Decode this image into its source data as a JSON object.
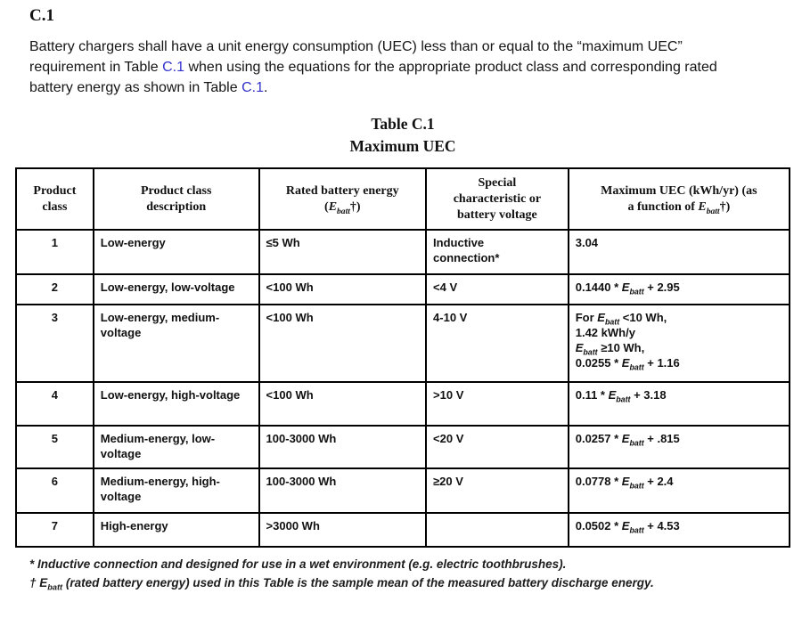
{
  "heading": "C.1",
  "paragraph": {
    "part1": "Battery chargers shall have a unit energy consumption (UEC) less than or equal to the “maximum UEC” requirement in Table ",
    "link1": "C.1",
    "part2": " when using the equations for the appropriate product class and corresponding rated battery energy as shown in Table ",
    "link2": "C.1",
    "part3": "."
  },
  "table_title": {
    "line1": "Table C.1",
    "line2": "Maximum UEC"
  },
  "table": {
    "headers": [
      "Product\nclass",
      "Product class\ndescription",
      "Rated battery energy\n({Ebatt}†)",
      "Special\ncharacteristic or\nbattery voltage",
      "Maximum UEC (kWh/yr) (as\na function of {Ebatt}†)"
    ],
    "rows": [
      [
        "1",
        "Low-energy",
        "≤5 Wh",
        "Inductive\nconnection*",
        "3.04"
      ],
      [
        "2",
        "Low-energy, low-voltage",
        "<100 Wh",
        "<4 V",
        "0.1440 * {Ebatt} + 2.95"
      ],
      [
        "3",
        "Low-energy, medium-voltage",
        "<100 Wh",
        "4-10 V",
        "For {Ebatt} <10 Wh,\n1.42 kWh/y\n{Ebatt} ≥10 Wh,\n0.0255 * {Ebatt} + 1.16"
      ],
      [
        "4",
        "Low-energy, high-voltage",
        "<100 Wh",
        ">10 V",
        "0.11 * {Ebatt} + 3.18"
      ],
      [
        "5",
        "Medium-energy, low-voltage",
        "100-3000 Wh",
        "<20 V",
        "0.0257 * {Ebatt} + .815"
      ],
      [
        "6",
        "Medium-energy, high-voltage",
        "100-3000 Wh",
        "≥20 V",
        "0.0778 * {Ebatt} + 2.4"
      ],
      [
        "7",
        "High-energy",
        ">3000 Wh",
        "",
        "0.0502 * {Ebatt} + 4.53"
      ]
    ]
  },
  "footnotes": [
    "* Inductive connection and designed for use in a wet environment (e.g. electric toothbrushes).",
    "† {Ebatt} (rated battery energy) used in this Table is the sample mean of the measured battery discharge energy."
  ],
  "colors": {
    "text": "#1a1a1a",
    "link": "#3333cc",
    "border": "#000000"
  }
}
